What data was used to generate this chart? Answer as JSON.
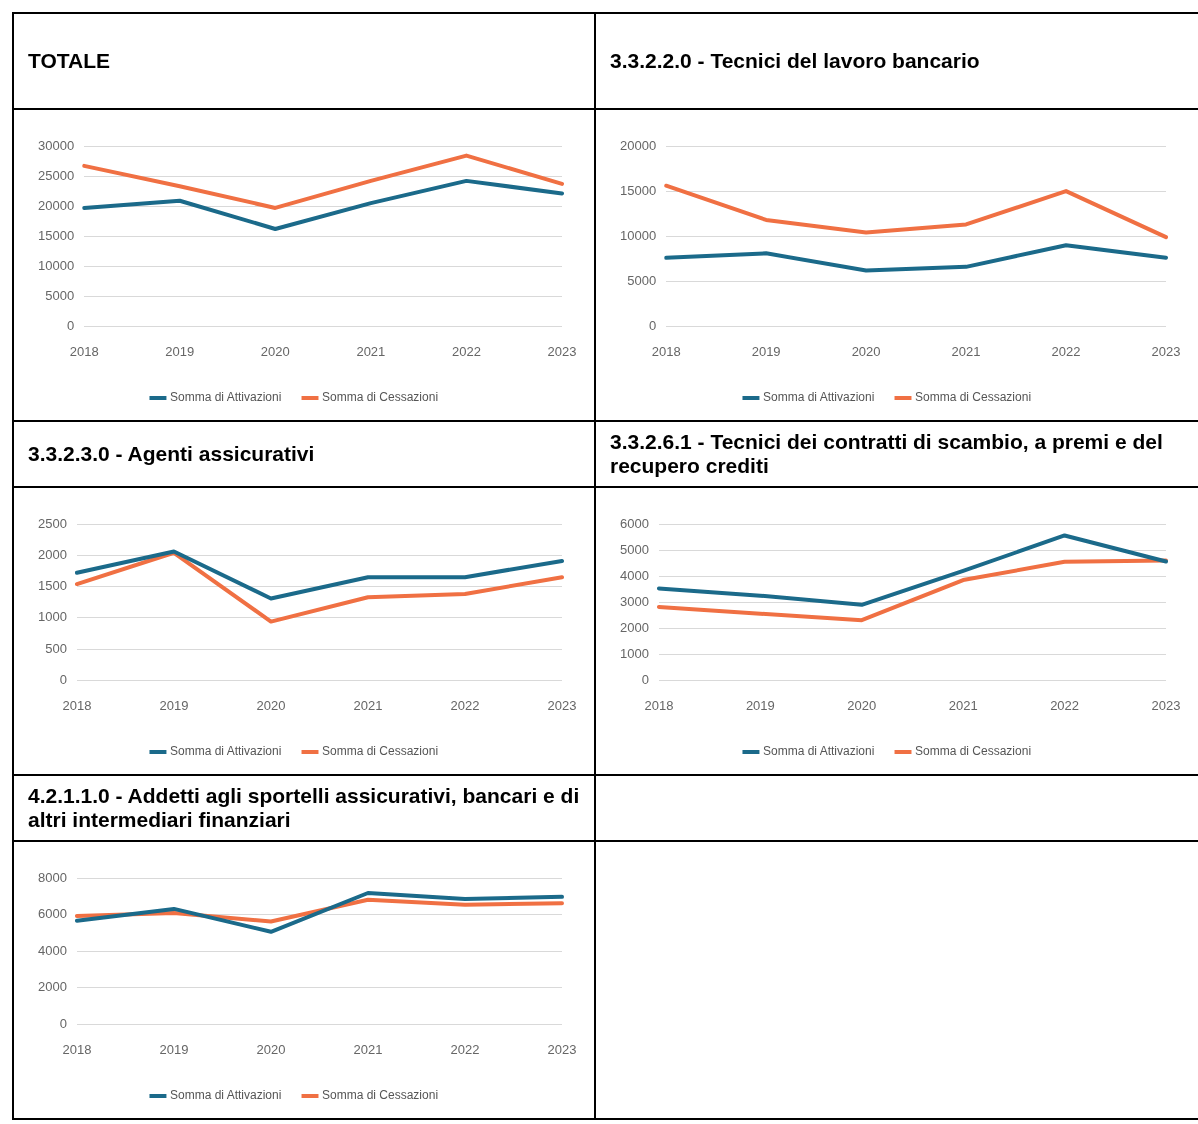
{
  "chart_data": [
    {
      "type": "line",
      "title": "TOTALE",
      "categories": [
        "2018",
        "2019",
        "2020",
        "2021",
        "2022",
        "2023"
      ],
      "series": [
        {
          "name": "Somma di Attivazioni",
          "color": "#1b6a8a",
          "values": [
            19700,
            20900,
            16200,
            20500,
            24200,
            22100
          ]
        },
        {
          "name": "Somma di Cessazioni",
          "color": "#f07043",
          "values": [
            26700,
            23300,
            19700,
            24200,
            28400,
            23700
          ]
        }
      ],
      "ylim": [
        0,
        30000
      ],
      "yticks": [
        0,
        5000,
        10000,
        15000,
        20000,
        25000,
        30000
      ],
      "grid": "y",
      "legend": "bottom",
      "marker": "none"
    },
    {
      "type": "line",
      "title": "3.3.2.2.0 - Tecnici del lavoro bancario",
      "categories": [
        "2018",
        "2019",
        "2020",
        "2021",
        "2022",
        "2023"
      ],
      "series": [
        {
          "name": "Somma di Attivazioni",
          "color": "#1b6a8a",
          "values": [
            7600,
            8100,
            6200,
            6600,
            9000,
            7600
          ]
        },
        {
          "name": "Somma di Cessazioni",
          "color": "#f07043",
          "values": [
            15600,
            11800,
            10400,
            11300,
            15000,
            9900
          ]
        }
      ],
      "ylim": [
        0,
        20000
      ],
      "yticks": [
        0,
        5000,
        10000,
        15000,
        20000
      ],
      "grid": "y",
      "legend": "bottom",
      "marker": "none"
    },
    {
      "type": "line",
      "title": "3.3.2.3.0 - Agenti assicurativi",
      "categories": [
        "2018",
        "2019",
        "2020",
        "2021",
        "2022",
        "2023"
      ],
      "series": [
        {
          "name": "Somma di Attivazioni",
          "color": "#1b6a8a",
          "values": [
            1720,
            2060,
            1310,
            1650,
            1650,
            1910
          ]
        },
        {
          "name": "Somma di Cessazioni",
          "color": "#f07043",
          "values": [
            1540,
            2040,
            940,
            1330,
            1380,
            1650
          ]
        }
      ],
      "ylim": [
        0,
        2500
      ],
      "yticks": [
        0,
        500,
        1000,
        1500,
        2000,
        2500
      ],
      "grid": "y",
      "legend": "bottom",
      "marker": "none"
    },
    {
      "type": "line",
      "title": "3.3.2.6.1 - Tecnici dei contratti di scambio, a premi e del recupero crediti",
      "categories": [
        "2018",
        "2019",
        "2020",
        "2021",
        "2022",
        "2023"
      ],
      "series": [
        {
          "name": "Somma di Attivazioni",
          "color": "#1b6a8a",
          "values": [
            3530,
            3250,
            2900,
            4200,
            5560,
            4560
          ]
        },
        {
          "name": "Somma di Cessazioni",
          "color": "#f07043",
          "values": [
            2820,
            2560,
            2310,
            3850,
            4550,
            4600
          ]
        }
      ],
      "ylim": [
        0,
        6000
      ],
      "yticks": [
        0,
        1000,
        2000,
        3000,
        4000,
        5000,
        6000
      ],
      "grid": "y",
      "legend": "bottom",
      "marker": "none"
    },
    {
      "type": "line",
      "title": "4.2.1.1.0 - Addetti agli sportelli assicurativi, bancari e di altri intermediari finanziari",
      "categories": [
        "2018",
        "2019",
        "2020",
        "2021",
        "2022",
        "2023"
      ],
      "series": [
        {
          "name": "Somma di Attivazioni",
          "color": "#1b6a8a",
          "values": [
            5660,
            6310,
            5060,
            7180,
            6850,
            6970
          ]
        },
        {
          "name": "Somma di Cessazioni",
          "color": "#f07043",
          "values": [
            5930,
            6090,
            5620,
            6810,
            6540,
            6620
          ]
        }
      ],
      "ylim": [
        0,
        8000
      ],
      "yticks": [
        0,
        2000,
        4000,
        6000,
        8000
      ],
      "grid": "y",
      "legend": "bottom",
      "marker": "none"
    }
  ]
}
